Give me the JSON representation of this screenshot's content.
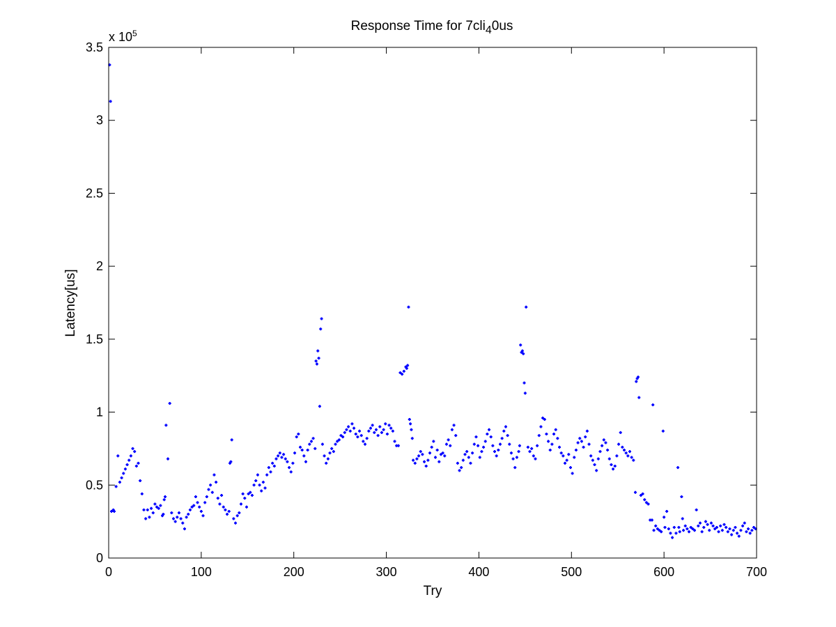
{
  "chart_data": {
    "type": "scatter",
    "title_parts": [
      "Response Time for 7cli",
      "4",
      "0us"
    ],
    "xlabel": "Try",
    "ylabel": "Latency[us]",
    "xlim": [
      0,
      700
    ],
    "ylim": [
      0,
      350000
    ],
    "x_ticks": [
      0,
      100,
      200,
      300,
      400,
      500,
      600,
      700
    ],
    "y_ticks": [
      0,
      50000,
      100000,
      150000,
      200000,
      250000,
      300000,
      350000
    ],
    "x_tick_labels": [
      "0",
      "100",
      "200",
      "300",
      "400",
      "500",
      "600",
      "700"
    ],
    "y_tick_labels": [
      "0",
      "0.5",
      "1",
      "1.5",
      "2",
      "2.5",
      "3",
      "3.5"
    ],
    "y_multiplier_base": "x 10",
    "y_multiplier_exp": "5",
    "grid": false,
    "marker_color": "#0000ff",
    "series": [
      {
        "x": [
          1,
          2,
          3,
          5,
          6,
          8,
          10,
          12,
          14,
          16,
          18,
          20,
          22,
          24,
          26,
          28,
          30,
          32,
          34,
          36,
          38,
          40,
          42,
          44,
          46,
          48,
          50,
          52,
          54,
          56,
          58,
          59,
          60,
          61,
          62,
          64,
          66,
          68,
          70,
          72,
          74,
          76,
          78,
          80,
          82,
          84,
          86,
          88,
          90,
          92,
          94,
          96,
          98,
          100,
          102,
          104,
          106,
          108,
          110,
          112,
          114,
          116,
          118,
          120,
          122,
          124,
          126,
          128,
          130,
          131,
          132,
          133,
          135,
          137,
          139,
          141,
          143,
          145,
          147,
          149,
          151,
          153,
          155,
          157,
          159,
          161,
          163,
          165,
          167,
          169,
          171,
          173,
          175,
          177,
          179,
          181,
          183,
          185,
          187,
          189,
          191,
          193,
          195,
          197,
          199,
          201,
          203,
          205,
          207,
          209,
          211,
          213,
          215,
          217,
          219,
          221,
          223,
          224,
          225,
          226,
          227,
          228,
          229,
          230,
          231,
          233,
          235,
          237,
          239,
          241,
          243,
          245,
          247,
          249,
          251,
          253,
          255,
          257,
          259,
          261,
          263,
          265,
          267,
          269,
          271,
          273,
          275,
          277,
          279,
          281,
          283,
          285,
          287,
          289,
          291,
          293,
          295,
          297,
          299,
          301,
          303,
          305,
          307,
          309,
          311,
          313,
          315,
          317,
          319,
          321,
          322,
          323,
          324,
          325,
          326,
          327,
          328,
          329,
          331,
          333,
          335,
          337,
          339,
          341,
          343,
          345,
          347,
          349,
          351,
          353,
          355,
          357,
          359,
          361,
          363,
          365,
          367,
          369,
          371,
          373,
          375,
          377,
          379,
          381,
          383,
          385,
          387,
          389,
          391,
          393,
          395,
          397,
          399,
          401,
          403,
          405,
          407,
          409,
          411,
          413,
          415,
          417,
          419,
          421,
          423,
          425,
          427,
          429,
          431,
          433,
          435,
          437,
          439,
          441,
          443,
          444,
          445,
          446,
          447,
          448,
          449,
          450,
          451,
          453,
          455,
          457,
          459,
          461,
          463,
          465,
          467,
          469,
          471,
          473,
          475,
          477,
          479,
          481,
          483,
          485,
          487,
          489,
          491,
          493,
          495,
          497,
          499,
          501,
          503,
          505,
          507,
          509,
          511,
          513,
          515,
          517,
          519,
          521,
          523,
          525,
          527,
          529,
          531,
          533,
          535,
          537,
          539,
          541,
          543,
          545,
          547,
          549,
          551,
          553,
          555,
          557,
          559,
          561,
          563,
          565,
          567,
          569,
          570,
          571,
          572,
          573,
          575,
          577,
          579,
          581,
          583,
          585,
          587,
          588,
          589,
          591,
          593,
          595,
          597,
          599,
          600,
          601,
          603,
          605,
          607,
          609,
          611,
          613,
          615,
          616,
          617,
          619,
          620,
          621,
          623,
          625,
          627,
          629,
          631,
          633,
          635,
          637,
          639,
          641,
          643,
          645,
          647,
          649,
          651,
          653,
          655,
          657,
          659,
          661,
          663,
          665,
          667,
          669,
          671,
          673,
          675,
          677,
          679,
          681,
          683,
          685,
          687,
          689,
          691,
          693,
          695,
          697,
          699
        ],
        "y": [
          338000,
          313000,
          32000,
          33000,
          32000,
          49000,
          70000,
          52000,
          55000,
          58000,
          61000,
          64000,
          67000,
          70000,
          75000,
          73000,
          63000,
          65000,
          53000,
          44000,
          33000,
          27000,
          33000,
          28000,
          34000,
          31000,
          37000,
          35000,
          34000,
          36000,
          29000,
          30000,
          40000,
          42000,
          91000,
          68000,
          106000,
          31000,
          27000,
          25000,
          28000,
          31000,
          27000,
          24000,
          20000,
          28000,
          30000,
          33000,
          35000,
          36000,
          42000,
          38000,
          35000,
          32000,
          29000,
          38000,
          42000,
          47000,
          50000,
          45000,
          57000,
          52000,
          41000,
          37000,
          43000,
          35000,
          33000,
          30000,
          32000,
          65000,
          66000,
          81000,
          27000,
          24000,
          29000,
          31000,
          37000,
          44000,
          41000,
          35000,
          44000,
          45000,
          43000,
          50000,
          53000,
          57000,
          50000,
          46000,
          52000,
          48000,
          57000,
          62000,
          59000,
          65000,
          63000,
          68000,
          70000,
          72000,
          69000,
          71000,
          68000,
          66000,
          62000,
          59000,
          65000,
          72000,
          83000,
          85000,
          76000,
          74000,
          70000,
          66000,
          74000,
          78000,
          80000,
          82000,
          75000,
          135000,
          133000,
          142000,
          137000,
          104000,
          157000,
          164000,
          78000,
          70000,
          65000,
          68000,
          72000,
          75000,
          73000,
          78000,
          80000,
          81000,
          84000,
          83000,
          86000,
          88000,
          90000,
          87000,
          92000,
          89000,
          85000,
          83000,
          87000,
          84000,
          80000,
          78000,
          82000,
          87000,
          89000,
          91000,
          86000,
          88000,
          84000,
          90000,
          86000,
          88000,
          92000,
          85000,
          91000,
          89000,
          87000,
          80000,
          77000,
          77000,
          127000,
          126000,
          128000,
          131000,
          130000,
          132000,
          172000,
          95000,
          92000,
          88000,
          82000,
          67000,
          65000,
          68000,
          70000,
          73000,
          71000,
          66000,
          63000,
          67000,
          72000,
          76000,
          80000,
          69000,
          74000,
          66000,
          71000,
          72000,
          70000,
          78000,
          81000,
          77000,
          88000,
          91000,
          84000,
          65000,
          60000,
          62000,
          67000,
          71000,
          73000,
          69000,
          65000,
          72000,
          78000,
          83000,
          77000,
          69000,
          73000,
          76000,
          80000,
          85000,
          88000,
          83000,
          77000,
          73000,
          70000,
          74000,
          78000,
          82000,
          87000,
          90000,
          84000,
          78000,
          72000,
          68000,
          62000,
          69000,
          73000,
          77000,
          146000,
          141000,
          142000,
          140000,
          120000,
          113000,
          172000,
          76000,
          73000,
          75000,
          70000,
          68000,
          77000,
          84000,
          90000,
          96000,
          95000,
          85000,
          80000,
          74000,
          78000,
          85000,
          88000,
          82000,
          76000,
          72000,
          70000,
          65000,
          67000,
          71000,
          62000,
          58000,
          69000,
          74000,
          79000,
          82000,
          80000,
          76000,
          83000,
          87000,
          78000,
          70000,
          67000,
          64000,
          60000,
          68000,
          73000,
          77000,
          81000,
          79000,
          74000,
          68000,
          64000,
          61000,
          63000,
          70000,
          78000,
          86000,
          76000,
          74000,
          72000,
          70000,
          73000,
          69000,
          67000,
          45000,
          121000,
          123000,
          124000,
          110000,
          43000,
          44000,
          40000,
          38000,
          37000,
          26000,
          26000,
          105000,
          19000,
          22000,
          20000,
          19000,
          18000,
          87000,
          28000,
          21000,
          32000,
          20000,
          17000,
          14000,
          21000,
          17000,
          62000,
          21000,
          18000,
          42000,
          27000,
          19000,
          22000,
          20000,
          18000,
          21000,
          20000,
          19000,
          33000,
          22000,
          24000,
          18000,
          21000,
          25000,
          23000,
          19000,
          24000,
          22000,
          20000,
          21000,
          18000,
          22000,
          19000,
          23000,
          21000,
          18000,
          20000,
          16000,
          19000,
          21000,
          17000,
          15000,
          19000,
          22000,
          24000,
          18000,
          20000,
          17000,
          19000,
          21000,
          20000
        ],
        "marker": "+"
      }
    ]
  }
}
